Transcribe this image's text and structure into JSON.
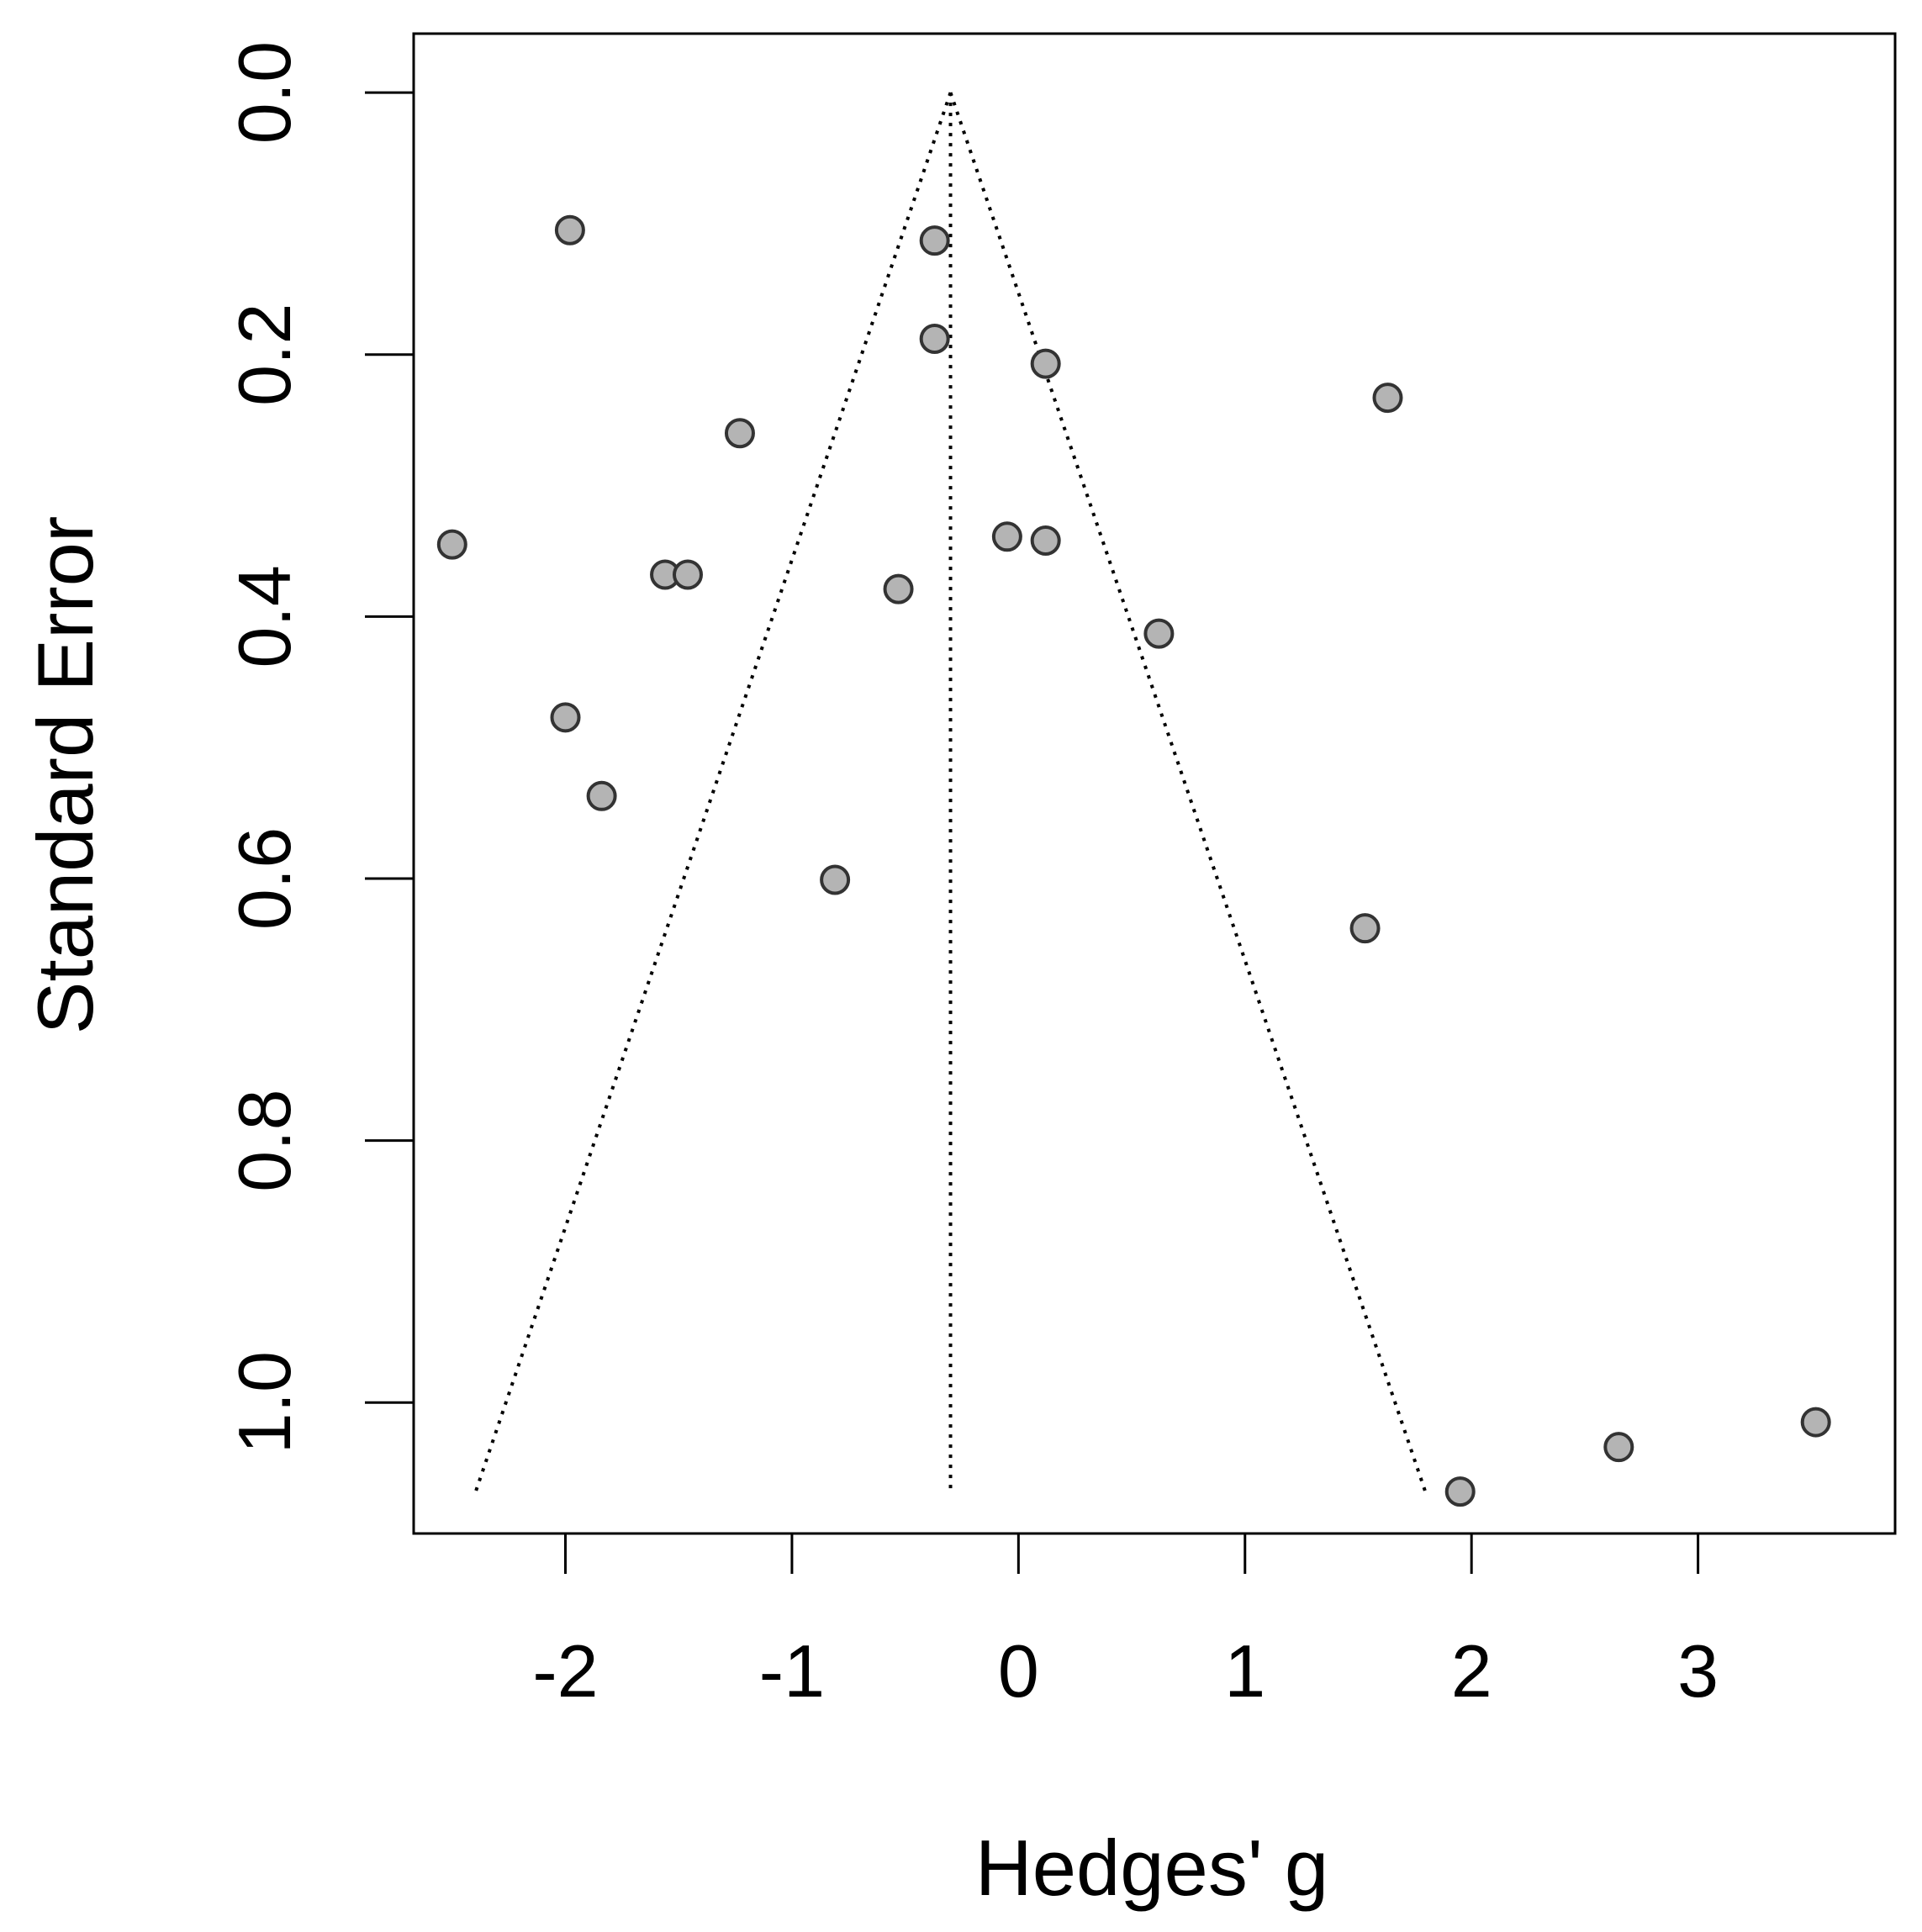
{
  "chart_data": {
    "type": "scatter",
    "title": "",
    "xlabel": "Hedges' g",
    "ylabel": "Standard Error",
    "xlim": [
      -2.67,
      3.87
    ],
    "ylim": [
      1.1,
      -0.045
    ],
    "y_reversed": true,
    "x_ticks": [
      -2,
      -1,
      0,
      1,
      2,
      3
    ],
    "x_tick_labels": [
      "-2",
      "-1",
      "0",
      "1",
      "2",
      "3"
    ],
    "y_ticks": [
      0.0,
      0.2,
      0.4,
      0.6,
      0.8,
      1.0
    ],
    "y_tick_labels": [
      "0.0",
      "0.2",
      "0.4",
      "0.6",
      "0.8",
      "1.0"
    ],
    "grid": false,
    "legend": "none",
    "funnel": {
      "center": -0.3,
      "apex_se": 0.0,
      "base_se": 1.07,
      "left_base": -2.4,
      "right_base": 1.8
    },
    "points": [
      {
        "x": -2.5,
        "y": 0.345
      },
      {
        "x": -1.98,
        "y": 0.105
      },
      {
        "x": -0.37,
        "y": 0.113
      },
      {
        "x": -0.37,
        "y": 0.188
      },
      {
        "x": 0.12,
        "y": 0.207
      },
      {
        "x": 1.63,
        "y": 0.233
      },
      {
        "x": -1.23,
        "y": 0.26
      },
      {
        "x": -0.05,
        "y": 0.339
      },
      {
        "x": 0.12,
        "y": 0.342
      },
      {
        "x": -1.56,
        "y": 0.368
      },
      {
        "x": -1.46,
        "y": 0.368
      },
      {
        "x": -0.53,
        "y": 0.379
      },
      {
        "x": 0.62,
        "y": 0.413
      },
      {
        "x": -2.0,
        "y": 0.477
      },
      {
        "x": -1.84,
        "y": 0.537
      },
      {
        "x": -0.81,
        "y": 0.601
      },
      {
        "x": 1.53,
        "y": 0.638
      },
      {
        "x": 3.52,
        "y": 1.015
      },
      {
        "x": 2.65,
        "y": 1.034
      },
      {
        "x": 1.95,
        "y": 1.068
      }
    ],
    "colors": {
      "point_fill": "#b4b4b4",
      "point_stroke": "#333333",
      "line": "#000000"
    }
  }
}
